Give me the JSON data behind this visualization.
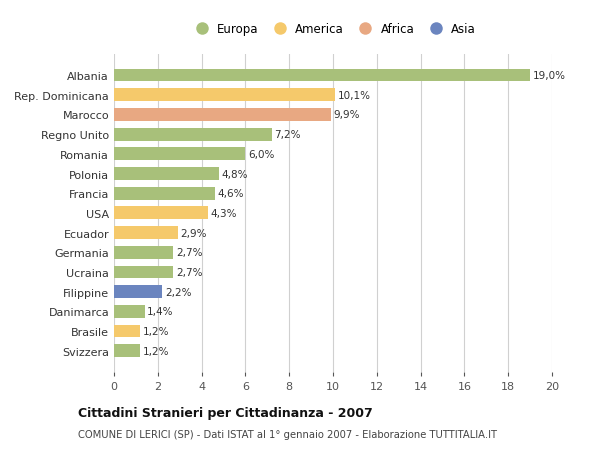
{
  "categories": [
    "Svizzera",
    "Brasile",
    "Danimarca",
    "Filippine",
    "Ucraina",
    "Germania",
    "Ecuador",
    "USA",
    "Francia",
    "Polonia",
    "Romania",
    "Regno Unito",
    "Marocco",
    "Rep. Dominicana",
    "Albania"
  ],
  "values": [
    1.2,
    1.2,
    1.4,
    2.2,
    2.7,
    2.7,
    2.9,
    4.3,
    4.6,
    4.8,
    6.0,
    7.2,
    9.9,
    10.1,
    19.0
  ],
  "colors": [
    "#a8c07a",
    "#f5c96b",
    "#a8c07a",
    "#6b85bf",
    "#a8c07a",
    "#a8c07a",
    "#f5c96b",
    "#f5c96b",
    "#a8c07a",
    "#a8c07a",
    "#a8c07a",
    "#a8c07a",
    "#e8a882",
    "#f5c96b",
    "#a8c07a"
  ],
  "labels": [
    "1,2%",
    "1,2%",
    "1,4%",
    "2,2%",
    "2,7%",
    "2,7%",
    "2,9%",
    "4,3%",
    "4,6%",
    "4,8%",
    "6,0%",
    "7,2%",
    "9,9%",
    "10,1%",
    "19,0%"
  ],
  "legend": {
    "Europa": "#a8c07a",
    "America": "#f5c96b",
    "Africa": "#e8a882",
    "Asia": "#6b85bf"
  },
  "title": "Cittadini Stranieri per Cittadinanza - 2007",
  "subtitle": "COMUNE DI LERICI (SP) - Dati ISTAT al 1° gennaio 2007 - Elaborazione TUTTITALIA.IT",
  "xlim": [
    0,
    20
  ],
  "xticks": [
    0,
    2,
    4,
    6,
    8,
    10,
    12,
    14,
    16,
    18,
    20
  ],
  "bg_color": "#ffffff",
  "grid_color": "#d0d0d0"
}
